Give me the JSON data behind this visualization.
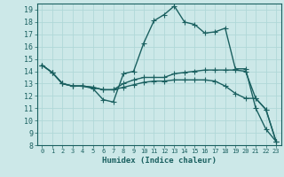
{
  "xlabel": "Humidex (Indice chaleur)",
  "xlim": [
    -0.5,
    23.5
  ],
  "ylim": [
    8,
    19.5
  ],
  "yticks": [
    8,
    9,
    10,
    11,
    12,
    13,
    14,
    15,
    16,
    17,
    18,
    19
  ],
  "xticks": [
    0,
    1,
    2,
    3,
    4,
    5,
    6,
    7,
    8,
    9,
    10,
    11,
    12,
    13,
    14,
    15,
    16,
    17,
    18,
    19,
    20,
    21,
    22,
    23
  ],
  "background_color": "#cce8e8",
  "grid_color": "#b0d8d8",
  "line_color": "#1a6060",
  "line_width": 1.0,
  "marker": "+",
  "marker_size": 4,
  "series": [
    [
      14.5,
      13.9,
      13.0,
      12.8,
      12.8,
      12.6,
      11.7,
      11.5,
      13.8,
      14.0,
      16.3,
      18.1,
      18.6,
      19.3,
      18.0,
      17.8,
      17.1,
      17.2,
      17.5,
      14.2,
      14.2,
      11.0,
      9.3,
      8.3
    ],
    [
      14.5,
      13.9,
      13.0,
      12.8,
      12.8,
      12.7,
      12.5,
      12.5,
      13.0,
      13.3,
      13.5,
      13.5,
      13.5,
      13.8,
      13.9,
      14.0,
      14.1,
      14.1,
      14.1,
      14.1,
      14.0,
      11.8,
      10.9,
      8.3
    ],
    [
      14.5,
      13.9,
      13.0,
      12.8,
      12.8,
      12.7,
      12.5,
      12.5,
      12.7,
      12.9,
      13.1,
      13.2,
      13.2,
      13.3,
      13.3,
      13.3,
      13.3,
      13.2,
      12.8,
      12.2,
      11.8,
      11.8,
      10.9,
      8.3
    ]
  ]
}
